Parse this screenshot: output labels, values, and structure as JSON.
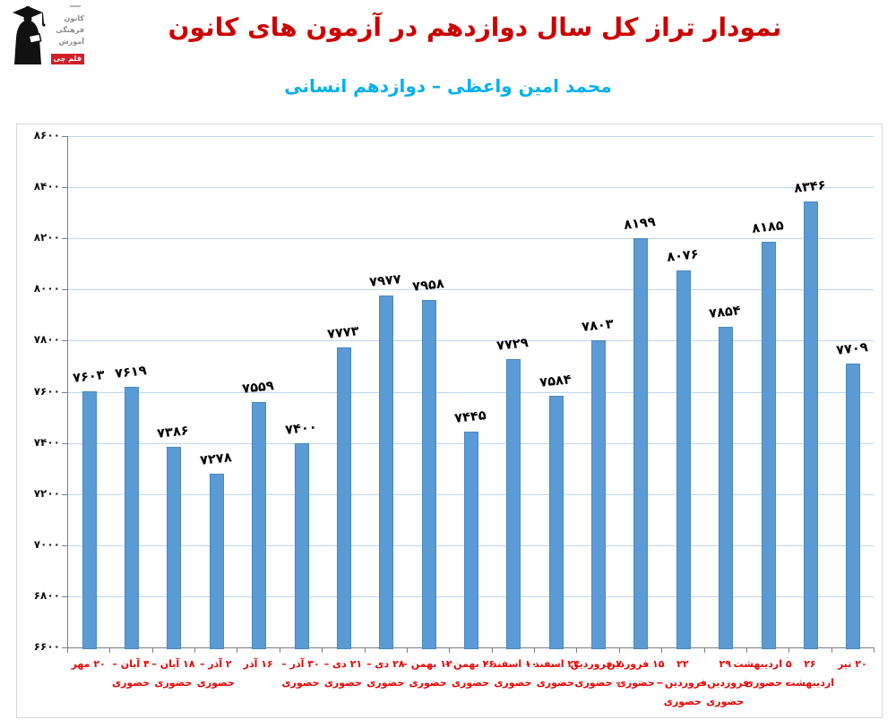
{
  "header": {
    "title": "نمودار تراز کل سال دوازدهم در آزمون های کانون",
    "subtitle": "محمد امین واعظی – دوازدهم انسانی",
    "title_color": "#cc0000",
    "subtitle_color": "#00b0f0"
  },
  "logo": {
    "org_lines": [
      "کانون",
      "فرهنگی",
      "آموزش"
    ],
    "badge": "قلم چی",
    "badge_color": "#d01f26"
  },
  "chart_data": {
    "type": "bar",
    "title": "نمودار تراز کل سال دوازدهم در آزمون های کانون",
    "subtitle": "محمد امین واعظی – دوازدهم انسانی",
    "ylim": [
      6600,
      8600
    ],
    "ytick_step": 200,
    "grid": true,
    "bar_color": "#5b9bd5",
    "grid_color": "#bdd7ee",
    "xlabel_color": "#ee0000",
    "value_label_color": "#000000",
    "yticks": [
      {
        "value": 6600,
        "label": "۶۶۰۰"
      },
      {
        "value": 6800,
        "label": "۶۸۰۰"
      },
      {
        "value": 7000,
        "label": "۷۰۰۰"
      },
      {
        "value": 7200,
        "label": "۷۲۰۰"
      },
      {
        "value": 7400,
        "label": "۷۴۰۰"
      },
      {
        "value": 7600,
        "label": "۷۶۰۰"
      },
      {
        "value": 7800,
        "label": "۷۸۰۰"
      },
      {
        "value": 8000,
        "label": "۸۰۰۰"
      },
      {
        "value": 8200,
        "label": "۸۲۰۰"
      },
      {
        "value": 8400,
        "label": "۸۴۰۰"
      },
      {
        "value": 8600,
        "label": "۸۶۰۰"
      }
    ],
    "categories": [
      {
        "label_lines": [
          "۲۰ مهر"
        ],
        "value": 7603,
        "value_label": "۷۶۰۳"
      },
      {
        "label_lines": [
          "۴ آبان –",
          "حضوری"
        ],
        "value": 7619,
        "value_label": "۷۶۱۹"
      },
      {
        "label_lines": [
          "۱۸ آبان –",
          "حضوری"
        ],
        "value": 7386,
        "value_label": "۷۳۸۶"
      },
      {
        "label_lines": [
          "۲ آذر –",
          "حضوری"
        ],
        "value": 7278,
        "value_label": "۷۲۷۸"
      },
      {
        "label_lines": [
          "۱۶ آذر"
        ],
        "value": 7559,
        "value_label": "۷۵۵۹"
      },
      {
        "label_lines": [
          "۳۰ آذر –",
          "حضوری"
        ],
        "value": 7400,
        "value_label": "۷۴۰۰"
      },
      {
        "label_lines": [
          "۲۱ دی –",
          "حضوری"
        ],
        "value": 7773,
        "value_label": "۷۷۷۳"
      },
      {
        "label_lines": [
          "۲۸ دی –",
          "حضوری"
        ],
        "value": 7977,
        "value_label": "۷۹۷۷"
      },
      {
        "label_lines": [
          "۱۲ بهمن –",
          "حضوری"
        ],
        "value": 7958,
        "value_label": "۷۹۵۸"
      },
      {
        "label_lines": [
          "۲۶ بهمن –",
          "حضوری"
        ],
        "value": 7445,
        "value_label": "۷۴۴۵"
      },
      {
        "label_lines": [
          "۱۰ اسفند –",
          "حضوری"
        ],
        "value": 7729,
        "value_label": "۷۷۲۹"
      },
      {
        "label_lines": [
          "۲۴ اسفند –",
          "حضوری"
        ],
        "value": 7584,
        "value_label": "۷۵۸۴"
      },
      {
        "label_lines": [
          "۷ فروردین",
          "– حضوری"
        ],
        "value": 7803,
        "value_label": "۷۸۰۳"
      },
      {
        "label_lines": [
          "۱۵ فروردین",
          "– حضوری"
        ],
        "value": 8199,
        "value_label": "۸۱۹۹"
      },
      {
        "label_lines": [
          "۲۲",
          "فروردین –",
          "حضوری"
        ],
        "value": 8076,
        "value_label": "۸۰۷۶"
      },
      {
        "label_lines": [
          "۲۹",
          "فروردین –",
          "حضوری"
        ],
        "value": 7854,
        "value_label": "۷۸۵۴"
      },
      {
        "label_lines": [
          "۵ اردیبهشت",
          "– حضوری"
        ],
        "value": 8185,
        "value_label": "۸۱۸۵"
      },
      {
        "label_lines": [
          "۲۶",
          "اردیبهشت"
        ],
        "value": 8346,
        "value_label": "۸۳۴۶"
      },
      {
        "label_lines": [
          "۲۰ تیر"
        ],
        "value": 7709,
        "value_label": "۷۷۰۹"
      }
    ]
  }
}
